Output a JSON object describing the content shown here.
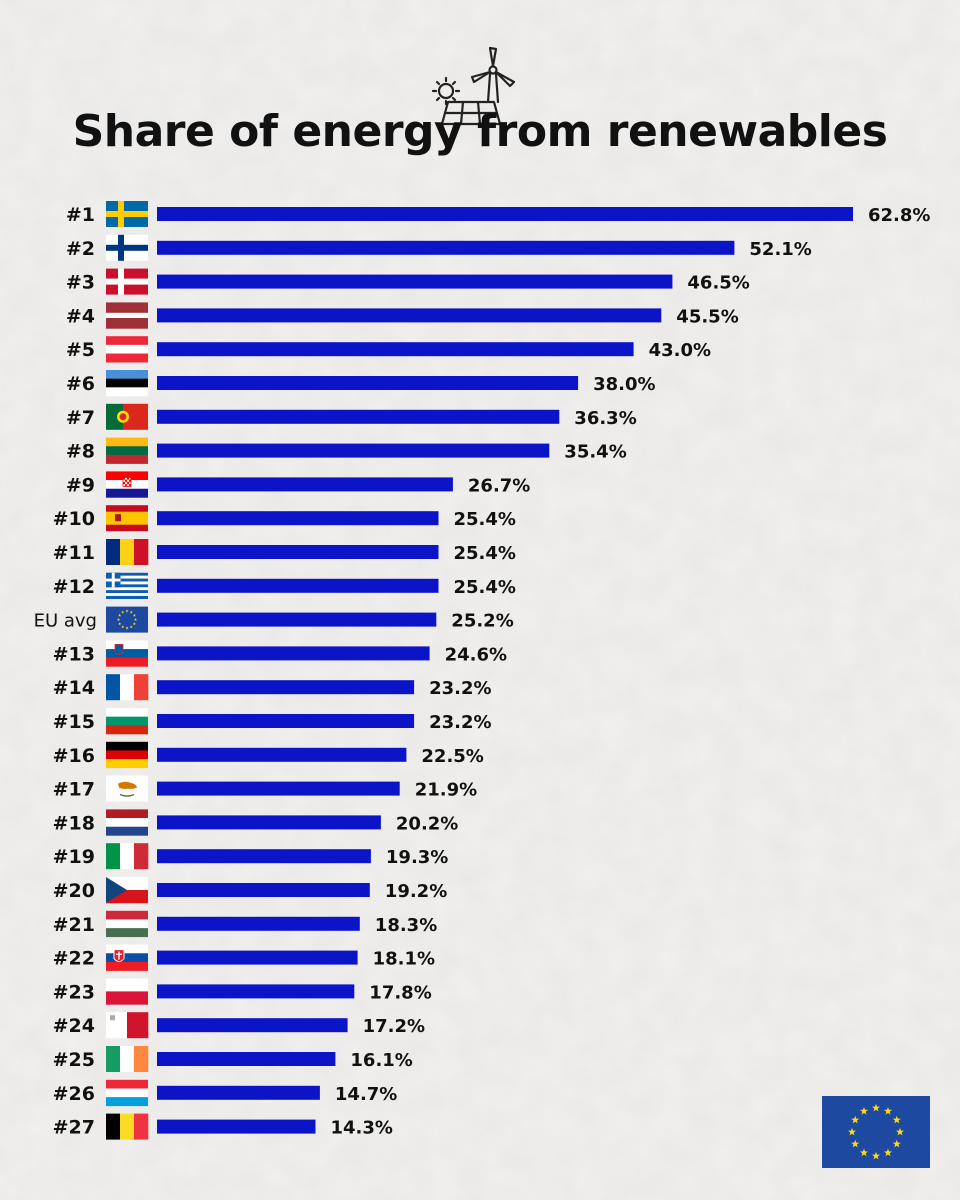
{
  "colors": {
    "bar": "#0c14c8",
    "background": "#f1f0ee",
    "eu_blue": "#1d4aa0",
    "eu_star": "#ffd617"
  },
  "icons": {
    "title_icon": "wind-turbine-solar-panel-icon",
    "logo": "eu-flag-logo"
  },
  "chart_data": {
    "type": "bar",
    "orientation": "horizontal",
    "title": "Share of energy from renewables",
    "xlabel": "",
    "ylabel": "",
    "xlim": [
      0,
      62.8
    ],
    "grid": false,
    "legend": "none",
    "categories": [
      "#1",
      "#2",
      "#3",
      "#4",
      "#5",
      "#6",
      "#7",
      "#8",
      "#9",
      "#10",
      "#11",
      "#12",
      "EU avg",
      "#13",
      "#14",
      "#15",
      "#16",
      "#17",
      "#18",
      "#19",
      "#20",
      "#21",
      "#22",
      "#23",
      "#24",
      "#25",
      "#26",
      "#27"
    ],
    "values": [
      62.8,
      52.1,
      46.5,
      45.5,
      43.0,
      38.0,
      36.3,
      35.4,
      26.7,
      25.4,
      25.4,
      25.4,
      25.2,
      24.6,
      23.2,
      23.2,
      22.5,
      21.9,
      20.2,
      19.3,
      19.2,
      18.3,
      18.1,
      17.8,
      17.2,
      16.1,
      14.7,
      14.3
    ],
    "value_labels": [
      "62.8%",
      "52.1%",
      "46.5%",
      "45.5%",
      "43.0%",
      "38.0%",
      "36.3%",
      "35.4%",
      "26.7%",
      "25.4%",
      "25.4%",
      "25.4%",
      "25.2%",
      "24.6%",
      "23.2%",
      "23.2%",
      "22.5%",
      "21.9%",
      "20.2%",
      "19.3%",
      "19.2%",
      "18.3%",
      "18.1%",
      "17.8%",
      "17.2%",
      "16.1%",
      "14.7%",
      "14.3%"
    ],
    "flags": [
      "sweden-flag",
      "finland-flag",
      "denmark-flag",
      "latvia-flag",
      "austria-flag",
      "estonia-flag",
      "portugal-flag",
      "lithuania-flag",
      "croatia-flag",
      "spain-flag",
      "romania-flag",
      "greece-flag",
      "eu-flag",
      "slovenia-flag",
      "france-flag",
      "bulgaria-flag",
      "germany-flag",
      "cyprus-flag",
      "netherlands-flag",
      "italy-flag",
      "czechia-flag",
      "hungary-flag",
      "slovakia-flag",
      "poland-flag",
      "malta-flag",
      "ireland-flag",
      "luxembourg-flag",
      "belgium-flag"
    ]
  }
}
